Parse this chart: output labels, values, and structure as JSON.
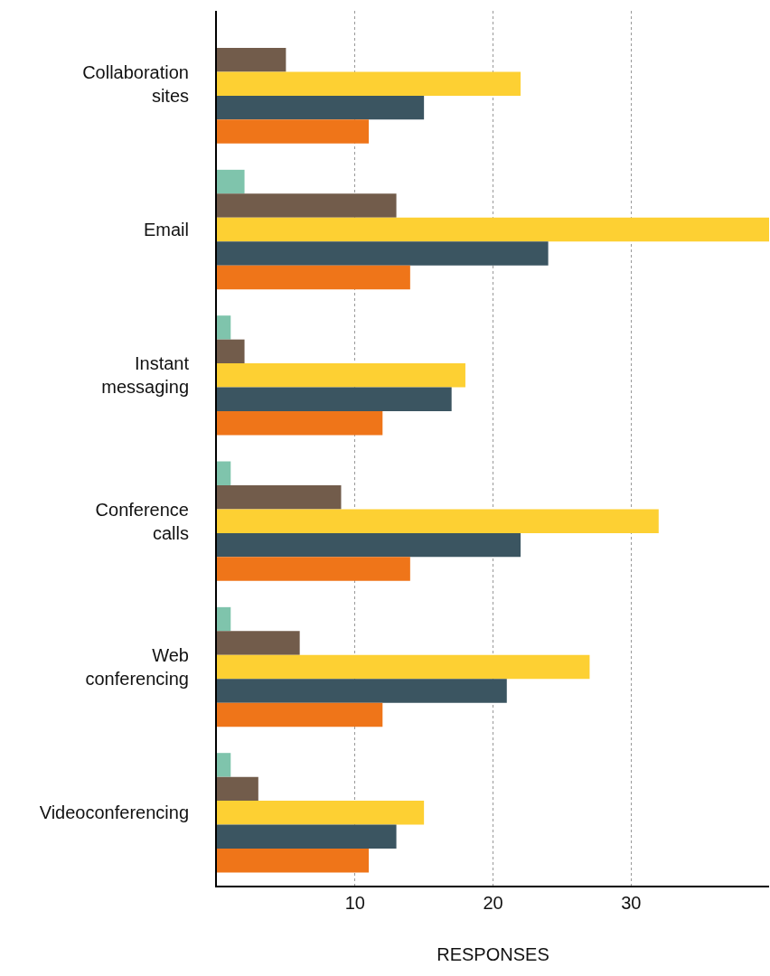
{
  "chart_data": {
    "type": "bar",
    "orientation": "horizontal",
    "xlabel": "RESPONSES",
    "categories": [
      "Collaboration sites",
      "Email",
      "Instant messaging",
      "Conference calls",
      "Web conferencing",
      "Videoconferencing"
    ],
    "series": [
      {
        "color": "#7fc4ac",
        "values": [
          null,
          2,
          1,
          1,
          1,
          1
        ]
      },
      {
        "color": "#725c4b",
        "values": [
          5,
          13,
          2,
          9,
          6,
          3
        ]
      },
      {
        "color": "#fdd033",
        "values": [
          22,
          40,
          18,
          32,
          27,
          15
        ]
      },
      {
        "color": "#3b5561",
        "values": [
          15,
          24,
          17,
          22,
          21,
          13
        ]
      },
      {
        "color": "#ef7519",
        "values": [
          11,
          14,
          12,
          14,
          12,
          11
        ]
      }
    ],
    "xlim": [
      0,
      40
    ],
    "xticks": [
      10,
      20,
      30
    ],
    "grid": "x"
  }
}
